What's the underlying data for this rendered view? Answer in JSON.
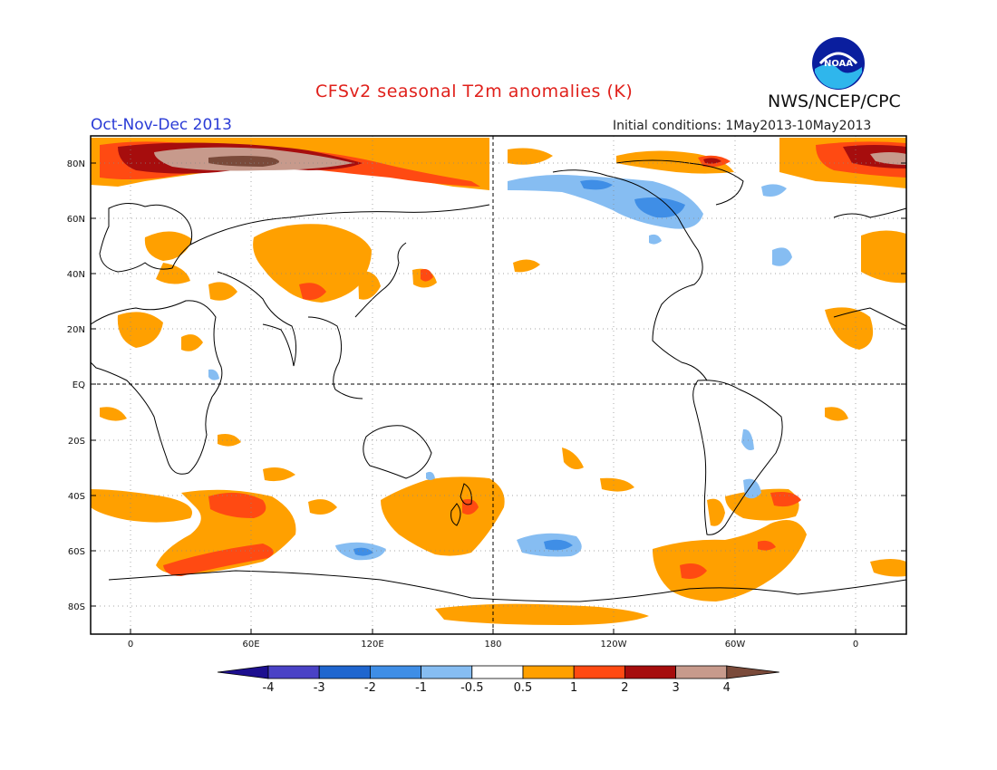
{
  "title": "CFSv2 seasonal T2m anomalies (K)",
  "season": "Oct-Nov-Dec 2013",
  "initial_conditions": "Initial conditions: 1May2013-10May2013",
  "agency": "NWS/NCEP/CPC",
  "logo_text": "NOAA",
  "lat_labels": [
    "80N",
    "60N",
    "40N",
    "20N",
    "EQ",
    "20S",
    "40S",
    "60S",
    "80S"
  ],
  "lon_labels": [
    "0",
    "60E",
    "120E",
    "180",
    "120W",
    "60W",
    "0"
  ],
  "colorbar": {
    "tick_labels": [
      "-4",
      "-3",
      "-2",
      "-1",
      "-0.5",
      "0.5",
      "1",
      "2",
      "3",
      "4"
    ],
    "colors": [
      "#1d0f8f",
      "#4a42c6",
      "#1f66cf",
      "#3f8ee6",
      "#86bdf2",
      "#ffffff",
      "#ffa000",
      "#ff4a12",
      "#a60d0d",
      "#c79a8c",
      "#7a4a3a"
    ]
  },
  "colors": {
    "title": "#e0201b",
    "season": "#2a3bd6",
    "warm_light": "#ffa000",
    "warm_mid": "#ff4a12",
    "warm_strong": "#a60d0d",
    "warm_extreme": "#c79a8c",
    "cool_light": "#86bdf2",
    "cool_mid": "#3f8ee6"
  }
}
